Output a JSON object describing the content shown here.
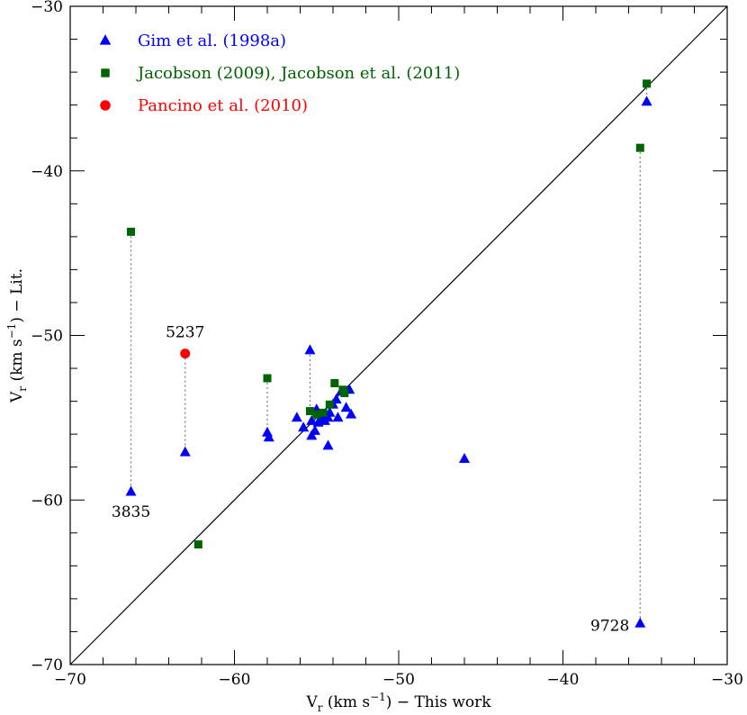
{
  "chart_data": {
    "type": "scatter",
    "xlabel": "V",
    "xlabel_sub": "r",
    "xlabel_rest": " (km s",
    "xlabel_sup": "−1",
    "xlabel_tail": ")  − This work",
    "ylabel": "V",
    "ylabel_sub": "r",
    "ylabel_rest": " (km s",
    "ylabel_sup": "−1",
    "ylabel_tail": ")  − Lit.",
    "xlim": [
      -70,
      -30
    ],
    "ylim": [
      -70,
      -30
    ],
    "xticks": [
      -70,
      -60,
      -50,
      -40,
      -30
    ],
    "yticks": [
      -70,
      -60,
      -50,
      -40,
      -30
    ],
    "xtick_labels": [
      "−70",
      "−60",
      "−50",
      "−40",
      "−30"
    ],
    "ytick_labels": [
      "−70",
      "−60",
      "−50",
      "−40",
      "−30"
    ],
    "identity_line": true,
    "grid": false,
    "legend_position": "top-left",
    "series": [
      {
        "name": "Gim et al. (1998a)",
        "marker": "triangle",
        "color": "#0000ff",
        "points": [
          [
            -66.3,
            -59.5
          ],
          [
            -63.0,
            -57.1
          ],
          [
            -58.0,
            -55.9
          ],
          [
            -57.9,
            -56.2
          ],
          [
            -55.4,
            -50.9
          ],
          [
            -56.2,
            -55.0
          ],
          [
            -55.8,
            -55.6
          ],
          [
            -55.3,
            -55.2
          ],
          [
            -55.3,
            -56.1
          ],
          [
            -55.1,
            -55.8
          ],
          [
            -55.0,
            -54.5
          ],
          [
            -54.9,
            -55.3
          ],
          [
            -54.7,
            -55.0
          ],
          [
            -54.5,
            -55.2
          ],
          [
            -54.3,
            -55.0
          ],
          [
            -54.3,
            -56.7
          ],
          [
            -54.2,
            -54.7
          ],
          [
            -54.0,
            -54.2
          ],
          [
            -53.8,
            -53.9
          ],
          [
            -53.7,
            -55.0
          ],
          [
            -53.5,
            -53.4
          ],
          [
            -53.2,
            -54.4
          ],
          [
            -53.0,
            -53.3
          ],
          [
            -52.9,
            -54.8
          ],
          [
            -46.0,
            -57.5
          ],
          [
            -35.3,
            -67.5
          ],
          [
            -34.9,
            -35.8
          ]
        ]
      },
      {
        "name": "Jacobson (2009), Jacobson et al. (2011)",
        "marker": "square",
        "color": "#006400",
        "points": [
          [
            -66.3,
            -43.7
          ],
          [
            -58.0,
            -52.6
          ],
          [
            -55.4,
            -54.6
          ],
          [
            -55.0,
            -54.8
          ],
          [
            -54.6,
            -54.7
          ],
          [
            -54.2,
            -54.2
          ],
          [
            -53.9,
            -52.9
          ],
          [
            -53.4,
            -53.3
          ],
          [
            -53.3,
            -53.5
          ],
          [
            -62.2,
            -62.7
          ],
          [
            -35.3,
            -38.6
          ],
          [
            -34.9,
            -34.7
          ]
        ]
      },
      {
        "name": "Pancino et al. (2010)",
        "marker": "circle",
        "color": "#ff0000",
        "points": [
          [
            -63.0,
            -51.1
          ]
        ]
      }
    ],
    "connectors": [
      [
        [
          -66.3,
          -43.7
        ],
        [
          -66.3,
          -59.5
        ]
      ],
      [
        [
          -63.0,
          -51.1
        ],
        [
          -63.0,
          -57.1
        ]
      ],
      [
        [
          -58.0,
          -52.6
        ],
        [
          -58.0,
          -55.9
        ]
      ],
      [
        [
          -55.4,
          -50.9
        ],
        [
          -55.4,
          -54.6
        ]
      ],
      [
        [
          -35.3,
          -38.6
        ],
        [
          -35.3,
          -67.5
        ]
      ],
      [
        [
          -34.9,
          -34.7
        ],
        [
          -34.9,
          -35.8
        ]
      ]
    ],
    "annotations": [
      {
        "text": "3835",
        "x": -66.3,
        "y": -59.5,
        "placement": "below"
      },
      {
        "text": "5237",
        "x": -63.0,
        "y": -51.1,
        "placement": "above"
      },
      {
        "text": "9728",
        "x": -35.3,
        "y": -67.5,
        "placement": "left"
      }
    ]
  }
}
